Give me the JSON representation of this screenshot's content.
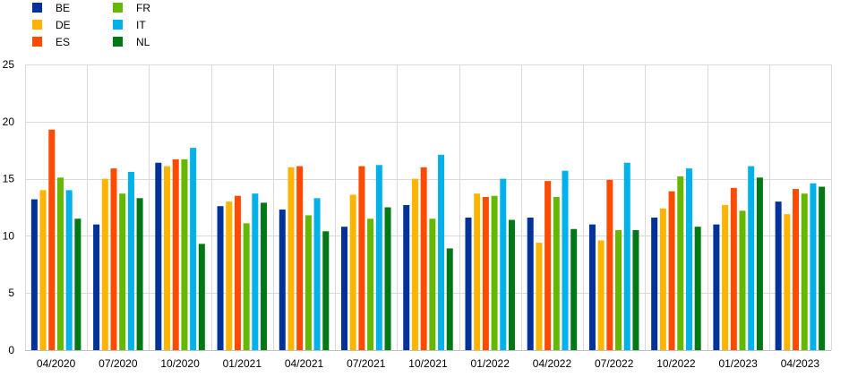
{
  "chart_data": {
    "type": "bar",
    "categories": [
      "04/2020",
      "07/2020",
      "10/2020",
      "01/2021",
      "04/2021",
      "07/2021",
      "10/2021",
      "01/2022",
      "04/2022",
      "07/2022",
      "10/2022",
      "01/2023",
      "04/2023"
    ],
    "series": [
      {
        "name": "BE",
        "color": "#003299",
        "values": [
          13.2,
          11.0,
          16.4,
          12.6,
          12.3,
          10.8,
          12.7,
          11.6,
          11.6,
          11.0,
          11.6,
          11.0,
          13.0
        ]
      },
      {
        "name": "DE",
        "color": "#FFB400",
        "values": [
          14.0,
          15.0,
          16.1,
          13.0,
          16.0,
          13.6,
          15.0,
          13.7,
          9.4,
          9.6,
          12.4,
          12.7,
          11.9
        ]
      },
      {
        "name": "ES",
        "color": "#FF4B00",
        "values": [
          19.3,
          15.9,
          16.7,
          13.5,
          16.1,
          16.1,
          16.0,
          13.4,
          14.8,
          14.9,
          13.9,
          14.2,
          14.1
        ]
      },
      {
        "name": "FR",
        "color": "#65B800",
        "values": [
          15.1,
          13.7,
          16.7,
          11.1,
          11.8,
          11.5,
          11.5,
          13.5,
          13.4,
          10.5,
          15.2,
          12.2,
          13.7
        ]
      },
      {
        "name": "IT",
        "color": "#00B1EA",
        "values": [
          14.0,
          15.6,
          17.7,
          13.7,
          13.3,
          16.2,
          17.1,
          15.0,
          15.7,
          16.4,
          15.9,
          16.1,
          14.6
        ]
      },
      {
        "name": "NL",
        "color": "#007816",
        "values": [
          11.5,
          13.3,
          9.3,
          12.9,
          10.4,
          12.5,
          8.9,
          11.4,
          10.6,
          10.5,
          10.8,
          15.1,
          14.3
        ]
      }
    ],
    "yticks": [
      "0",
      "5",
      "10",
      "15",
      "20",
      "25"
    ],
    "ylim": [
      0,
      25
    ],
    "grid": true,
    "legend_position": "top-left"
  }
}
